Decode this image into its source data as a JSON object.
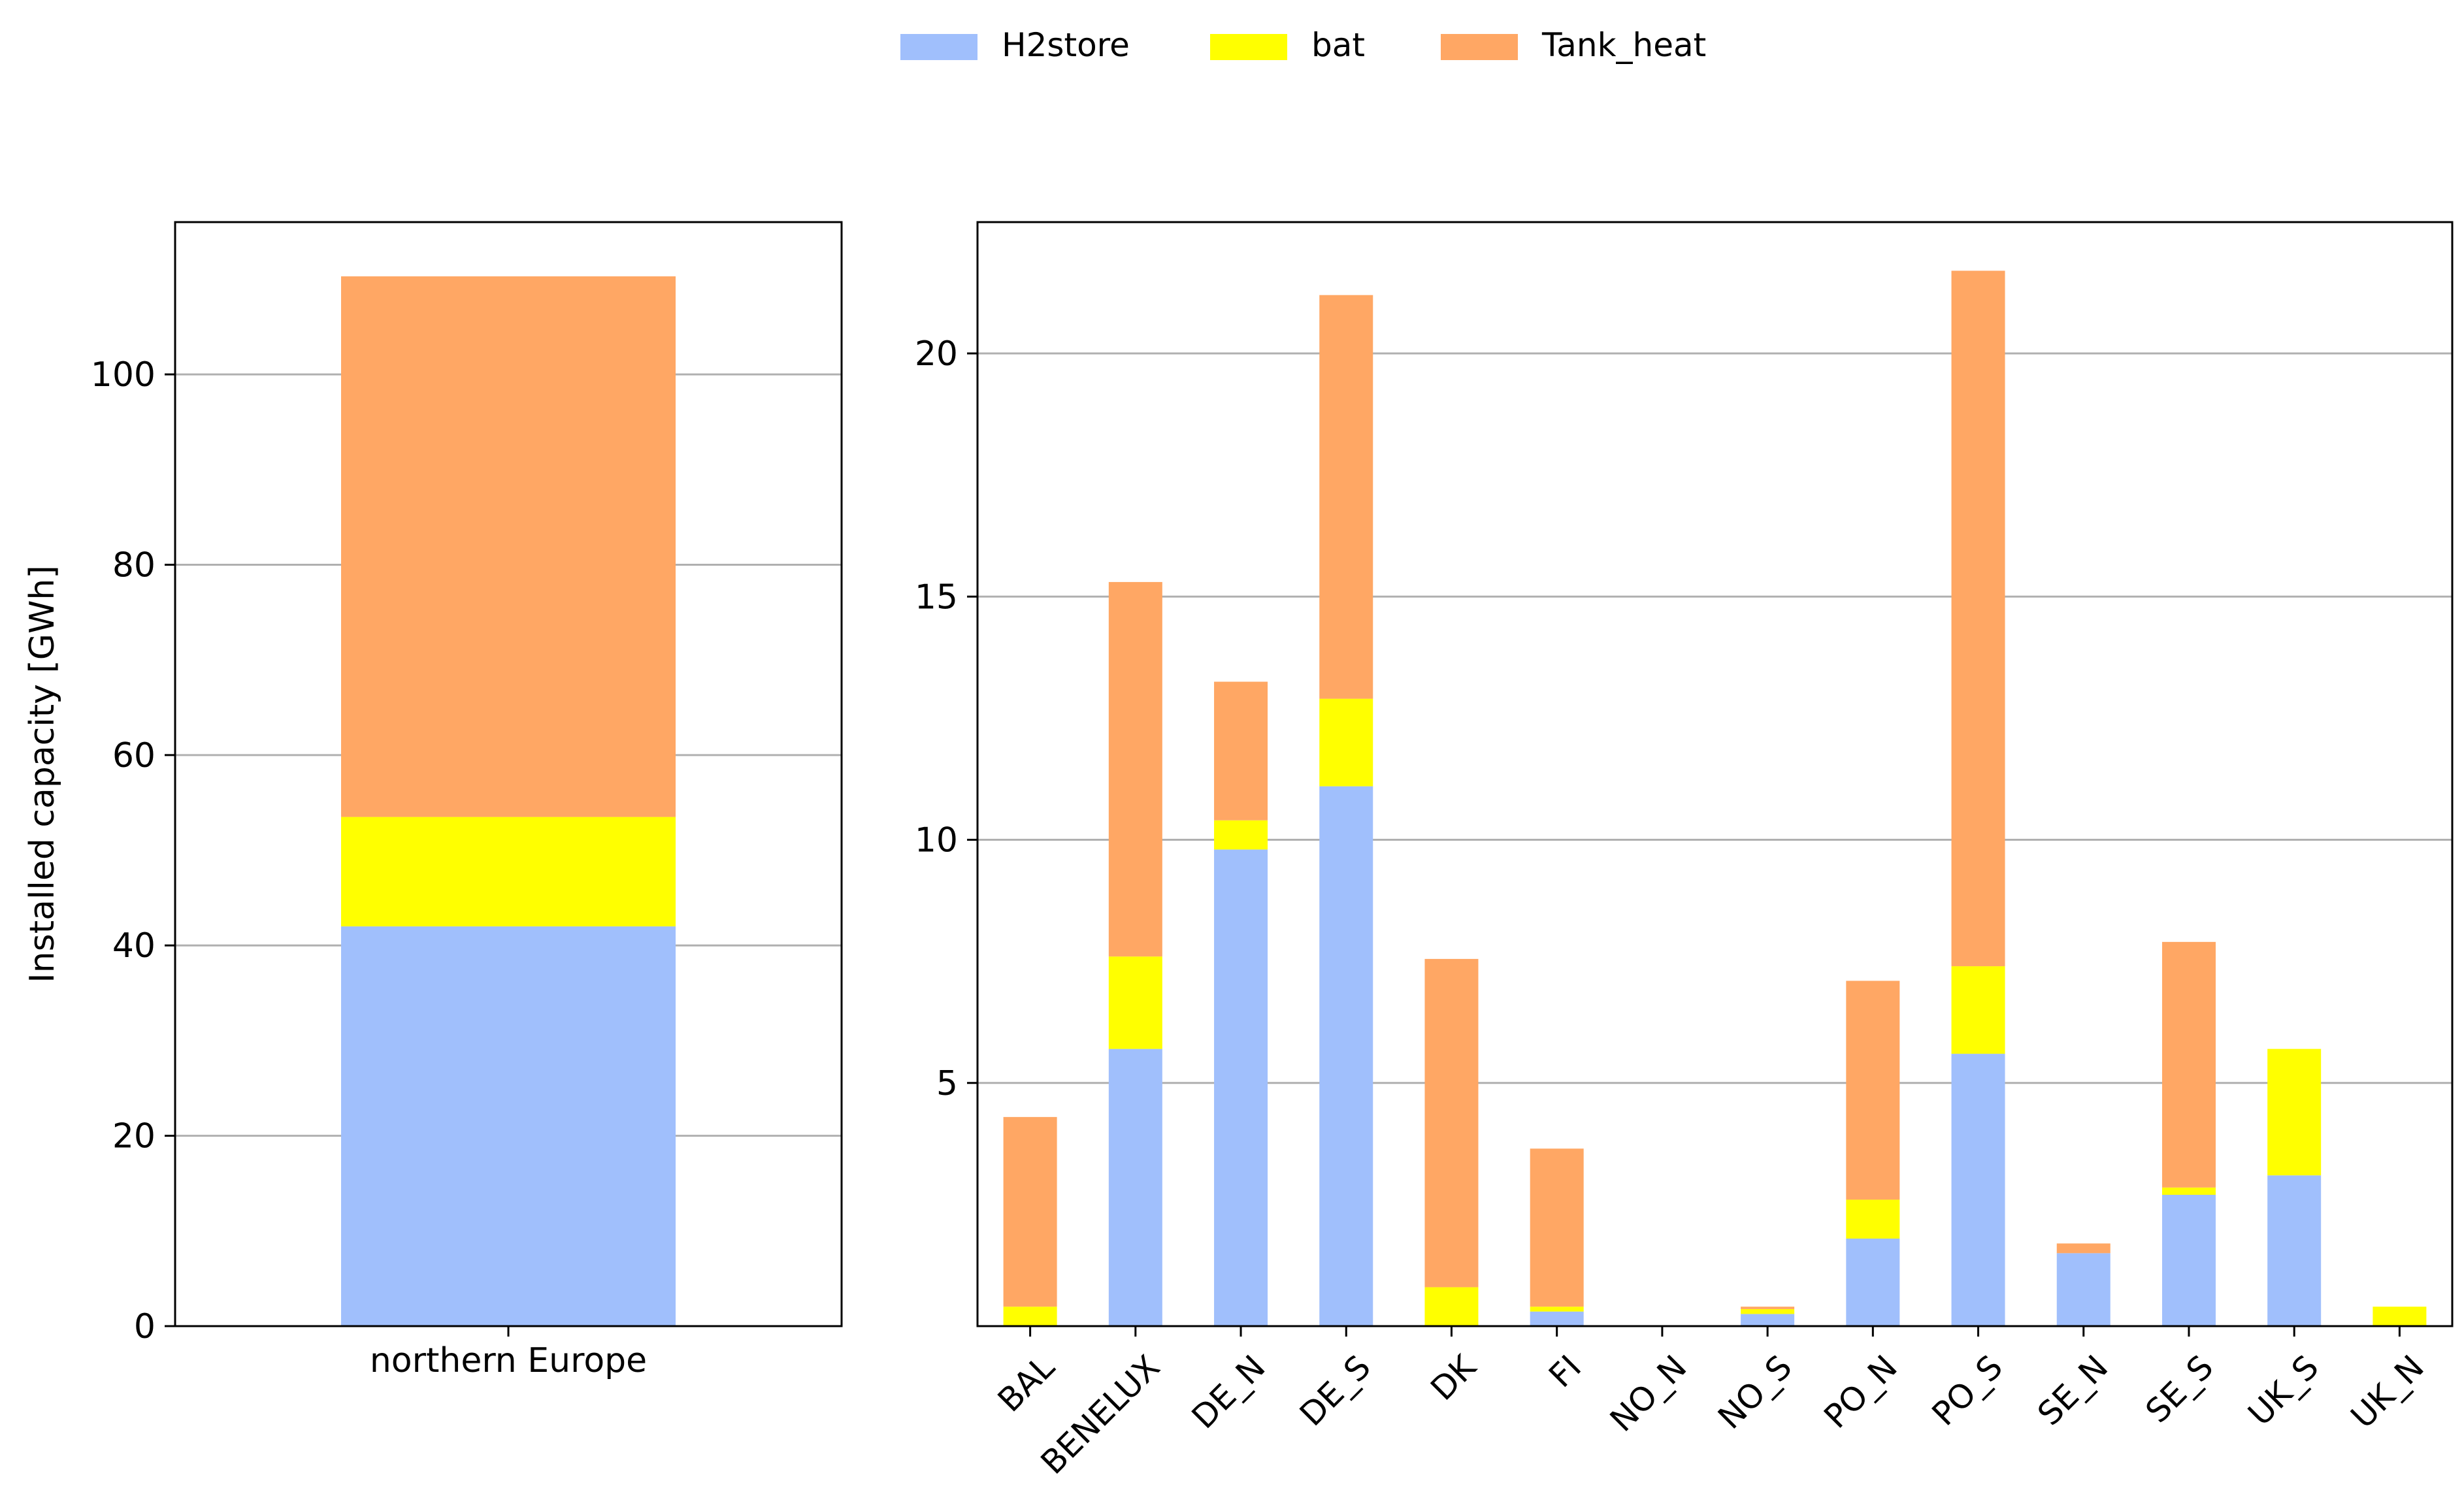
{
  "legend": {
    "placement": "top-center",
    "items": [
      {
        "label": "H2store",
        "color": "#a0bffc"
      },
      {
        "label": "bat",
        "color": "#ffff00"
      },
      {
        "label": "Tank_heat",
        "color": "#ffa764"
      }
    ]
  },
  "chart_data": [
    {
      "type": "bar",
      "stacked": true,
      "title": "",
      "xlabel": "",
      "ylabel": "Installed capacity [GWh]",
      "ylim": [
        0,
        116
      ],
      "yticks": [
        0,
        20,
        40,
        60,
        80,
        100
      ],
      "grid": "y",
      "categories": [
        "northern Europe"
      ],
      "series": [
        {
          "name": "H2store",
          "color": "#a0bffc",
          "values": [
            42.0
          ]
        },
        {
          "name": "bat",
          "color": "#ffff00",
          "values": [
            11.5
          ]
        },
        {
          "name": "Tank_heat",
          "color": "#ffa764",
          "values": [
            56.8
          ]
        }
      ]
    },
    {
      "type": "bar",
      "stacked": true,
      "title": "",
      "xlabel": "",
      "ylabel": "",
      "ylim": [
        0,
        22.7
      ],
      "yticks": [
        5,
        10,
        15,
        20
      ],
      "grid": "y",
      "categories": [
        "BAL",
        "BENELUX",
        "DE_N",
        "DE_S",
        "DK",
        "FI",
        "NO_N",
        "NO_S",
        "PO_N",
        "PO_S",
        "SE_N",
        "SE_S",
        "UK_S",
        "UK_N"
      ],
      "series": [
        {
          "name": "H2store",
          "color": "#a0bffc",
          "values": [
            0.0,
            5.7,
            9.8,
            11.1,
            0.0,
            0.3,
            0.0,
            0.25,
            1.8,
            5.6,
            1.5,
            2.7,
            3.1,
            0.0
          ]
        },
        {
          "name": "bat",
          "color": "#ffff00",
          "values": [
            0.4,
            1.9,
            0.6,
            1.8,
            0.8,
            0.1,
            0.0,
            0.1,
            0.8,
            1.8,
            0.0,
            0.15,
            2.6,
            0.4
          ]
        },
        {
          "name": "Tank_heat",
          "color": "#ffa764",
          "values": [
            3.9,
            7.7,
            2.85,
            8.3,
            6.75,
            3.25,
            0.0,
            0.05,
            4.5,
            14.3,
            0.2,
            5.05,
            0.0,
            0.0
          ]
        }
      ]
    }
  ]
}
